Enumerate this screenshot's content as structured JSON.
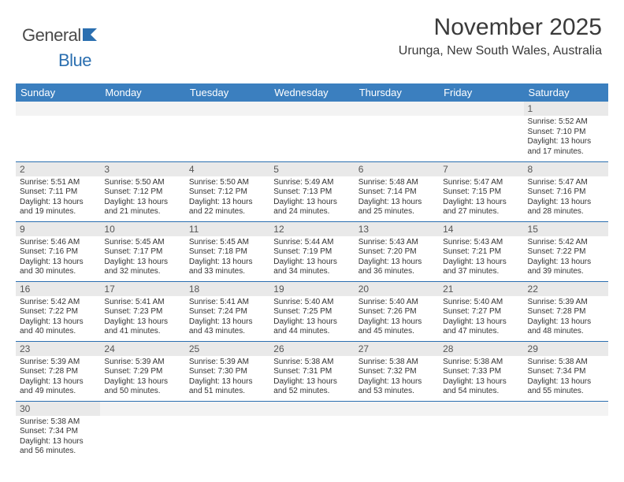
{
  "brand": {
    "general": "General",
    "blue": "Blue"
  },
  "title": "November 2025",
  "location": "Urunga, New South Wales, Australia",
  "colors": {
    "header_bg": "#3b7fbf",
    "header_text": "#ffffff",
    "daynum_bg": "#e9e9e9",
    "border": "#2b6fb0",
    "logo_blue": "#2b6fb0",
    "text": "#333333"
  },
  "day_headers": [
    "Sunday",
    "Monday",
    "Tuesday",
    "Wednesday",
    "Thursday",
    "Friday",
    "Saturday"
  ],
  "weeks": [
    [
      {
        "n": "",
        "sr": "",
        "ss": "",
        "dl": ""
      },
      {
        "n": "",
        "sr": "",
        "ss": "",
        "dl": ""
      },
      {
        "n": "",
        "sr": "",
        "ss": "",
        "dl": ""
      },
      {
        "n": "",
        "sr": "",
        "ss": "",
        "dl": ""
      },
      {
        "n": "",
        "sr": "",
        "ss": "",
        "dl": ""
      },
      {
        "n": "",
        "sr": "",
        "ss": "",
        "dl": ""
      },
      {
        "n": "1",
        "sr": "Sunrise: 5:52 AM",
        "ss": "Sunset: 7:10 PM",
        "dl": "Daylight: 13 hours and 17 minutes."
      }
    ],
    [
      {
        "n": "2",
        "sr": "Sunrise: 5:51 AM",
        "ss": "Sunset: 7:11 PM",
        "dl": "Daylight: 13 hours and 19 minutes."
      },
      {
        "n": "3",
        "sr": "Sunrise: 5:50 AM",
        "ss": "Sunset: 7:12 PM",
        "dl": "Daylight: 13 hours and 21 minutes."
      },
      {
        "n": "4",
        "sr": "Sunrise: 5:50 AM",
        "ss": "Sunset: 7:12 PM",
        "dl": "Daylight: 13 hours and 22 minutes."
      },
      {
        "n": "5",
        "sr": "Sunrise: 5:49 AM",
        "ss": "Sunset: 7:13 PM",
        "dl": "Daylight: 13 hours and 24 minutes."
      },
      {
        "n": "6",
        "sr": "Sunrise: 5:48 AM",
        "ss": "Sunset: 7:14 PM",
        "dl": "Daylight: 13 hours and 25 minutes."
      },
      {
        "n": "7",
        "sr": "Sunrise: 5:47 AM",
        "ss": "Sunset: 7:15 PM",
        "dl": "Daylight: 13 hours and 27 minutes."
      },
      {
        "n": "8",
        "sr": "Sunrise: 5:47 AM",
        "ss": "Sunset: 7:16 PM",
        "dl": "Daylight: 13 hours and 28 minutes."
      }
    ],
    [
      {
        "n": "9",
        "sr": "Sunrise: 5:46 AM",
        "ss": "Sunset: 7:16 PM",
        "dl": "Daylight: 13 hours and 30 minutes."
      },
      {
        "n": "10",
        "sr": "Sunrise: 5:45 AM",
        "ss": "Sunset: 7:17 PM",
        "dl": "Daylight: 13 hours and 32 minutes."
      },
      {
        "n": "11",
        "sr": "Sunrise: 5:45 AM",
        "ss": "Sunset: 7:18 PM",
        "dl": "Daylight: 13 hours and 33 minutes."
      },
      {
        "n": "12",
        "sr": "Sunrise: 5:44 AM",
        "ss": "Sunset: 7:19 PM",
        "dl": "Daylight: 13 hours and 34 minutes."
      },
      {
        "n": "13",
        "sr": "Sunrise: 5:43 AM",
        "ss": "Sunset: 7:20 PM",
        "dl": "Daylight: 13 hours and 36 minutes."
      },
      {
        "n": "14",
        "sr": "Sunrise: 5:43 AM",
        "ss": "Sunset: 7:21 PM",
        "dl": "Daylight: 13 hours and 37 minutes."
      },
      {
        "n": "15",
        "sr": "Sunrise: 5:42 AM",
        "ss": "Sunset: 7:22 PM",
        "dl": "Daylight: 13 hours and 39 minutes."
      }
    ],
    [
      {
        "n": "16",
        "sr": "Sunrise: 5:42 AM",
        "ss": "Sunset: 7:22 PM",
        "dl": "Daylight: 13 hours and 40 minutes."
      },
      {
        "n": "17",
        "sr": "Sunrise: 5:41 AM",
        "ss": "Sunset: 7:23 PM",
        "dl": "Daylight: 13 hours and 41 minutes."
      },
      {
        "n": "18",
        "sr": "Sunrise: 5:41 AM",
        "ss": "Sunset: 7:24 PM",
        "dl": "Daylight: 13 hours and 43 minutes."
      },
      {
        "n": "19",
        "sr": "Sunrise: 5:40 AM",
        "ss": "Sunset: 7:25 PM",
        "dl": "Daylight: 13 hours and 44 minutes."
      },
      {
        "n": "20",
        "sr": "Sunrise: 5:40 AM",
        "ss": "Sunset: 7:26 PM",
        "dl": "Daylight: 13 hours and 45 minutes."
      },
      {
        "n": "21",
        "sr": "Sunrise: 5:40 AM",
        "ss": "Sunset: 7:27 PM",
        "dl": "Daylight: 13 hours and 47 minutes."
      },
      {
        "n": "22",
        "sr": "Sunrise: 5:39 AM",
        "ss": "Sunset: 7:28 PM",
        "dl": "Daylight: 13 hours and 48 minutes."
      }
    ],
    [
      {
        "n": "23",
        "sr": "Sunrise: 5:39 AM",
        "ss": "Sunset: 7:28 PM",
        "dl": "Daylight: 13 hours and 49 minutes."
      },
      {
        "n": "24",
        "sr": "Sunrise: 5:39 AM",
        "ss": "Sunset: 7:29 PM",
        "dl": "Daylight: 13 hours and 50 minutes."
      },
      {
        "n": "25",
        "sr": "Sunrise: 5:39 AM",
        "ss": "Sunset: 7:30 PM",
        "dl": "Daylight: 13 hours and 51 minutes."
      },
      {
        "n": "26",
        "sr": "Sunrise: 5:38 AM",
        "ss": "Sunset: 7:31 PM",
        "dl": "Daylight: 13 hours and 52 minutes."
      },
      {
        "n": "27",
        "sr": "Sunrise: 5:38 AM",
        "ss": "Sunset: 7:32 PM",
        "dl": "Daylight: 13 hours and 53 minutes."
      },
      {
        "n": "28",
        "sr": "Sunrise: 5:38 AM",
        "ss": "Sunset: 7:33 PM",
        "dl": "Daylight: 13 hours and 54 minutes."
      },
      {
        "n": "29",
        "sr": "Sunrise: 5:38 AM",
        "ss": "Sunset: 7:34 PM",
        "dl": "Daylight: 13 hours and 55 minutes."
      }
    ],
    [
      {
        "n": "30",
        "sr": "Sunrise: 5:38 AM",
        "ss": "Sunset: 7:34 PM",
        "dl": "Daylight: 13 hours and 56 minutes."
      },
      {
        "n": "",
        "sr": "",
        "ss": "",
        "dl": ""
      },
      {
        "n": "",
        "sr": "",
        "ss": "",
        "dl": ""
      },
      {
        "n": "",
        "sr": "",
        "ss": "",
        "dl": ""
      },
      {
        "n": "",
        "sr": "",
        "ss": "",
        "dl": ""
      },
      {
        "n": "",
        "sr": "",
        "ss": "",
        "dl": ""
      },
      {
        "n": "",
        "sr": "",
        "ss": "",
        "dl": ""
      }
    ]
  ]
}
